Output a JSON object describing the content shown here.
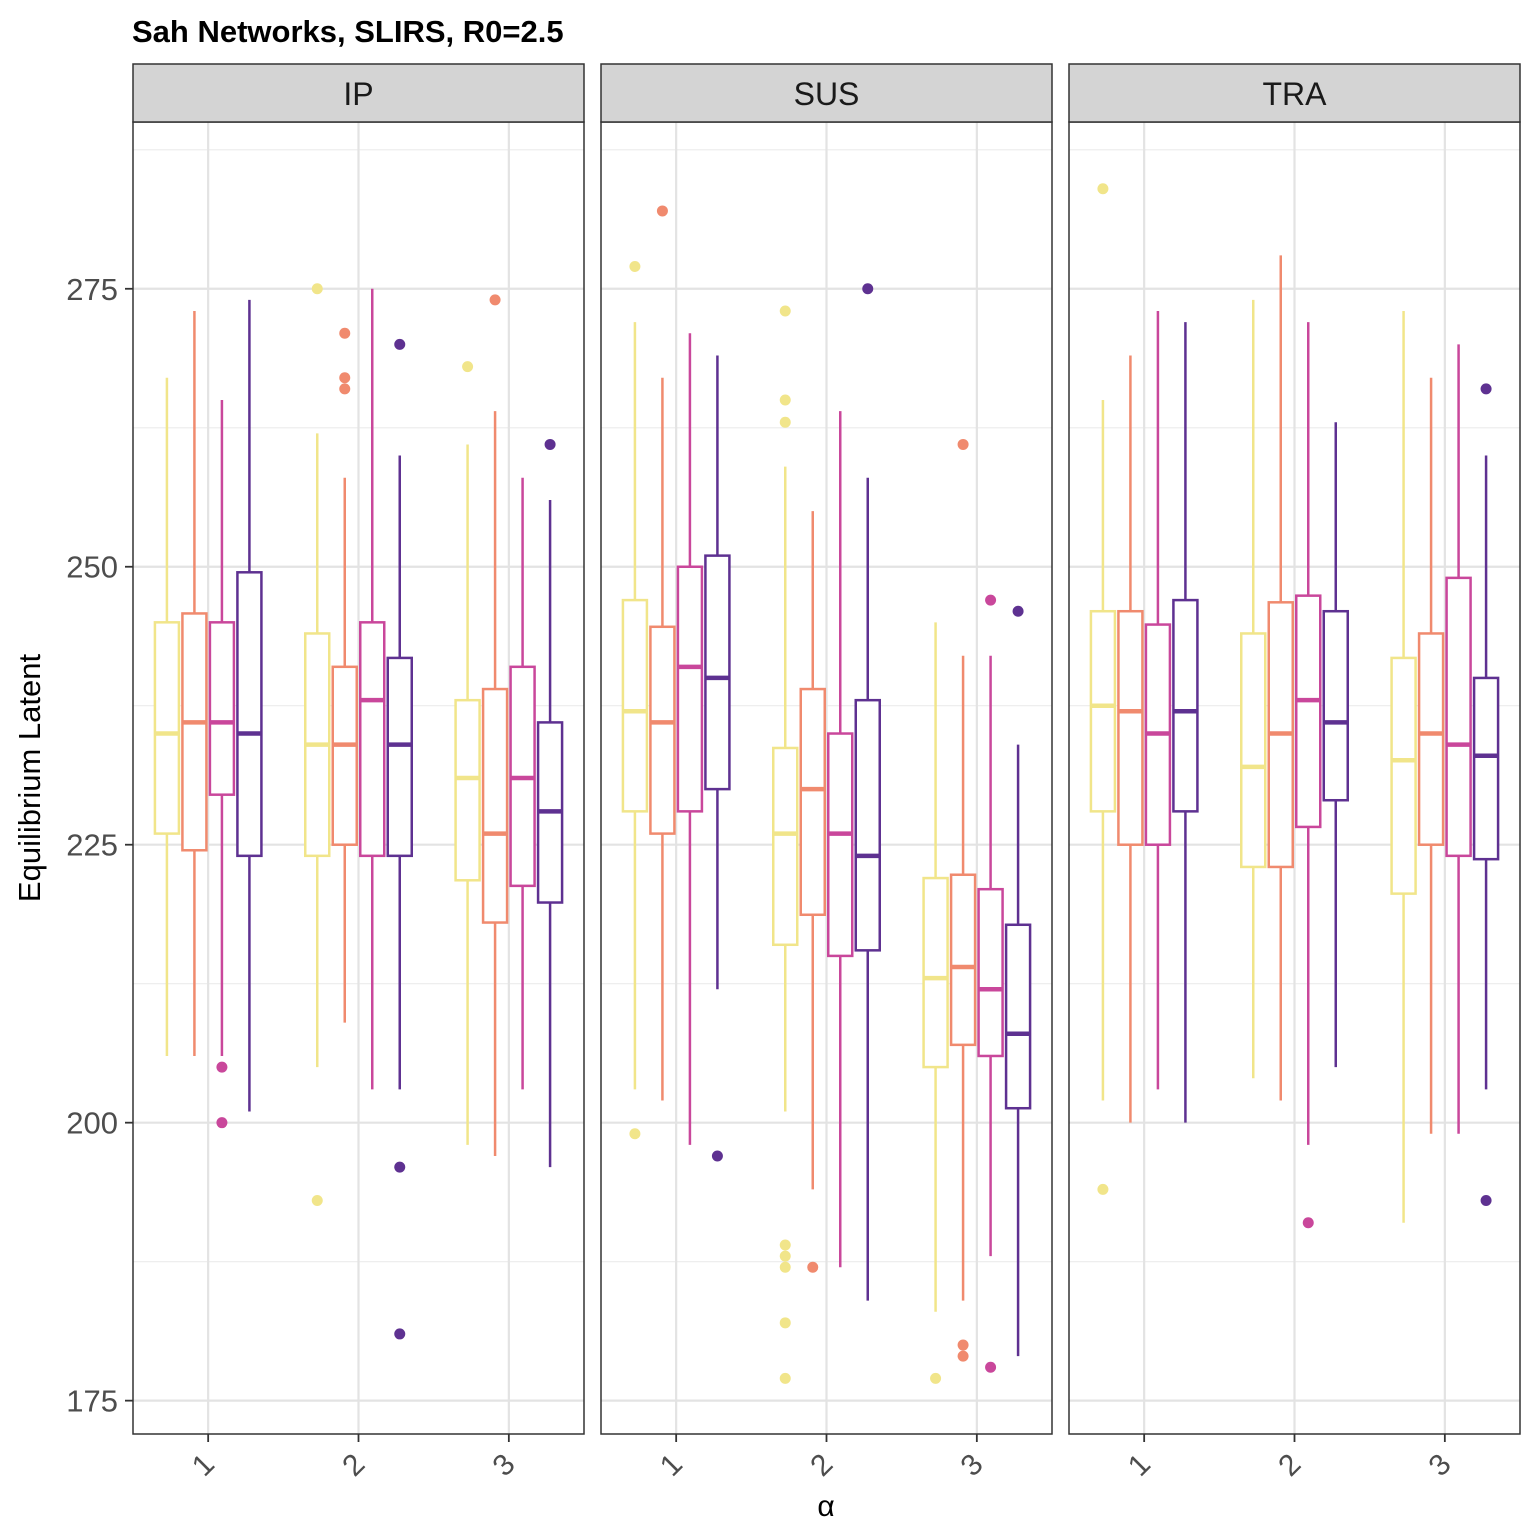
{
  "chart_data": {
    "type": "boxplot",
    "title": "Sah Networks, SLIRS, R0=2.5",
    "xlabel": "α",
    "ylabel": "Equilibrium Latent",
    "ylim": [
      172,
      290
    ],
    "y_ticks": [
      175,
      200,
      225,
      250,
      275
    ],
    "y_tick_labels": [
      "175",
      "200",
      "225",
      "250",
      "275"
    ],
    "x_categories": [
      "1",
      "2",
      "3"
    ],
    "group_colors": [
      "#f1e58a",
      "#f08a6e",
      "#c9479b",
      "#5e3191"
    ],
    "grid": true,
    "legend": "none",
    "panels": [
      {
        "label": "IP",
        "groups": [
          {
            "x": "1",
            "boxes": [
              {
                "whislo": 206,
                "q1": 226,
                "med": 235,
                "q3": 245,
                "whishi": 267,
                "outliers": []
              },
              {
                "whislo": 206,
                "q1": 224.5,
                "med": 236,
                "q3": 245.8,
                "whishi": 273,
                "outliers": []
              },
              {
                "whislo": 206,
                "q1": 229.5,
                "med": 236,
                "q3": 245,
                "whishi": 265,
                "outliers": [
                  205,
                  200
                ]
              },
              {
                "whislo": 201,
                "q1": 224,
                "med": 235,
                "q3": 249.5,
                "whishi": 274,
                "outliers": []
              }
            ]
          },
          {
            "x": "2",
            "boxes": [
              {
                "whislo": 205,
                "q1": 224,
                "med": 234,
                "q3": 244,
                "whishi": 262,
                "outliers": [
                  275,
                  193
                ]
              },
              {
                "whislo": 209,
                "q1": 225,
                "med": 234,
                "q3": 241,
                "whishi": 258,
                "outliers": [
                  271,
                  267,
                  266
                ]
              },
              {
                "whislo": 203,
                "q1": 224,
                "med": 238,
                "q3": 245,
                "whishi": 275,
                "outliers": []
              },
              {
                "whislo": 203,
                "q1": 224,
                "med": 234,
                "q3": 241.8,
                "whishi": 260,
                "outliers": [
                  270,
                  196,
                  181
                ]
              }
            ]
          },
          {
            "x": "3",
            "boxes": [
              {
                "whislo": 198,
                "q1": 221.8,
                "med": 231,
                "q3": 238,
                "whishi": 261,
                "outliers": [
                  268
                ]
              },
              {
                "whislo": 197,
                "q1": 218,
                "med": 226,
                "q3": 239,
                "whishi": 264,
                "outliers": [
                  274
                ]
              },
              {
                "whislo": 203,
                "q1": 221.3,
                "med": 231,
                "q3": 241,
                "whishi": 258,
                "outliers": []
              },
              {
                "whislo": 196,
                "q1": 219.8,
                "med": 228,
                "q3": 236,
                "whishi": 256,
                "outliers": [
                  261
                ]
              }
            ]
          }
        ]
      },
      {
        "label": "SUS",
        "groups": [
          {
            "x": "1",
            "boxes": [
              {
                "whislo": 203,
                "q1": 228,
                "med": 237,
                "q3": 247,
                "whishi": 272,
                "outliers": [
                  277,
                  199
                ]
              },
              {
                "whislo": 202,
                "q1": 226,
                "med": 236,
                "q3": 244.6,
                "whishi": 267,
                "outliers": [
                  282
                ]
              },
              {
                "whislo": 198,
                "q1": 228,
                "med": 241,
                "q3": 250,
                "whishi": 271,
                "outliers": []
              },
              {
                "whislo": 212,
                "q1": 230,
                "med": 240,
                "q3": 251,
                "whishi": 269,
                "outliers": [
                  197
                ]
              }
            ]
          },
          {
            "x": "2",
            "boxes": [
              {
                "whislo": 201,
                "q1": 216,
                "med": 226,
                "q3": 233.7,
                "whishi": 259,
                "outliers": [
                  273,
                  265,
                  263,
                  189,
                  188,
                  187,
                  182,
                  177
                ]
              },
              {
                "whislo": 194,
                "q1": 218.7,
                "med": 230,
                "q3": 239,
                "whishi": 255,
                "outliers": [
                  187
                ]
              },
              {
                "whislo": 187,
                "q1": 215,
                "med": 226,
                "q3": 235,
                "whishi": 264,
                "outliers": []
              },
              {
                "whislo": 184,
                "q1": 215.5,
                "med": 224,
                "q3": 238,
                "whishi": 258,
                "outliers": [
                  275
                ]
              }
            ]
          },
          {
            "x": "3",
            "boxes": [
              {
                "whislo": 183,
                "q1": 205,
                "med": 213,
                "q3": 222,
                "whishi": 245,
                "outliers": [
                  177
                ]
              },
              {
                "whislo": 184,
                "q1": 207,
                "med": 214,
                "q3": 222.3,
                "whishi": 242,
                "outliers": [
                  261,
                  180,
                  179
                ]
              },
              {
                "whislo": 188,
                "q1": 206,
                "med": 212,
                "q3": 221,
                "whishi": 242,
                "outliers": [
                  247,
                  178
                ]
              },
              {
                "whislo": 179,
                "q1": 201.3,
                "med": 208,
                "q3": 217.8,
                "whishi": 234,
                "outliers": [
                  246
                ]
              }
            ]
          }
        ]
      },
      {
        "label": "TRA",
        "groups": [
          {
            "x": "1",
            "boxes": [
              {
                "whislo": 202,
                "q1": 228,
                "med": 237.5,
                "q3": 246,
                "whishi": 265,
                "outliers": [
                  284,
                  194
                ]
              },
              {
                "whislo": 200,
                "q1": 225,
                "med": 237,
                "q3": 246,
                "whishi": 269,
                "outliers": []
              },
              {
                "whislo": 203,
                "q1": 225,
                "med": 235,
                "q3": 244.8,
                "whishi": 273,
                "outliers": []
              },
              {
                "whislo": 200,
                "q1": 228,
                "med": 237,
                "q3": 247,
                "whishi": 272,
                "outliers": []
              }
            ]
          },
          {
            "x": "2",
            "boxes": [
              {
                "whislo": 204,
                "q1": 223,
                "med": 232,
                "q3": 244,
                "whishi": 274,
                "outliers": []
              },
              {
                "whislo": 202,
                "q1": 223,
                "med": 235,
                "q3": 246.8,
                "whishi": 278,
                "outliers": []
              },
              {
                "whislo": 198,
                "q1": 226.6,
                "med": 238,
                "q3": 247.4,
                "whishi": 272,
                "outliers": [
                  191
                ]
              },
              {
                "whislo": 205,
                "q1": 229,
                "med": 236,
                "q3": 246,
                "whishi": 263,
                "outliers": []
              }
            ]
          },
          {
            "x": "3",
            "boxes": [
              {
                "whislo": 191,
                "q1": 220.6,
                "med": 232.6,
                "q3": 241.8,
                "whishi": 273,
                "outliers": []
              },
              {
                "whislo": 199,
                "q1": 225,
                "med": 235,
                "q3": 244,
                "whishi": 267,
                "outliers": []
              },
              {
                "whislo": 199,
                "q1": 224,
                "med": 234,
                "q3": 249,
                "whishi": 270,
                "outliers": []
              },
              {
                "whislo": 203,
                "q1": 223.7,
                "med": 233,
                "q3": 240,
                "whishi": 260,
                "outliers": [
                  266,
                  193
                ]
              }
            ]
          }
        ]
      }
    ]
  }
}
